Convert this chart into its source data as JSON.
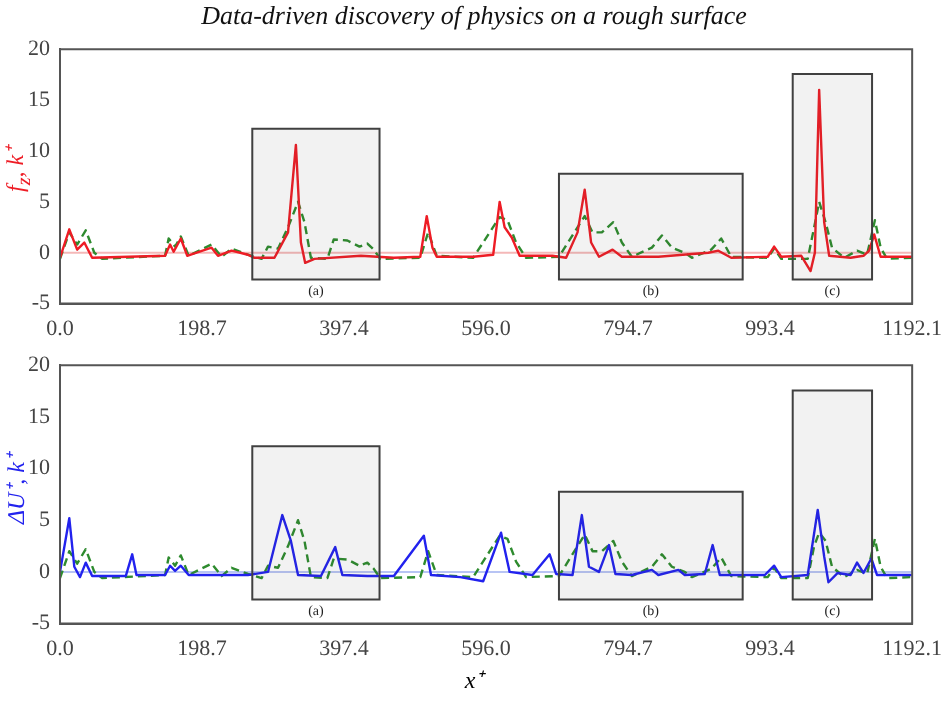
{
  "chart_data": [
    {
      "type": "line",
      "title": "Data-driven discovery of physics on a rough surface",
      "ylabel": "f$_{z}$, k⁺",
      "xlim": [
        0,
        1192.1
      ],
      "xticks": [
        {
          "value": 0,
          "label": "0.0"
        },
        {
          "value": 198.7,
          "label": "198.7"
        },
        {
          "value": 397.4,
          "label": "397.4"
        },
        {
          "value": 596.0,
          "label": "596.0"
        },
        {
          "value": 794.7,
          "label": "794.7"
        },
        {
          "value": 993.4,
          "label": "993.4"
        },
        {
          "value": 1192.1,
          "label": "1192.1"
        }
      ],
      "ylim": [
        -5,
        20
      ],
      "yticks": [
        -5,
        0,
        5,
        10,
        15,
        20
      ],
      "grid": false,
      "legend": false,
      "ref_lines": [
        {
          "axis": "y",
          "value": 0,
          "color": "#f4b8b8"
        }
      ],
      "bands": [
        {
          "axis": "x",
          "from": 269,
          "to": 447,
          "label": "(a)",
          "color": "#404040"
        },
        {
          "axis": "x",
          "from": 698,
          "to": 955,
          "label": "(b)",
          "color": "#404040"
        },
        {
          "axis": "x",
          "from": 1025,
          "to": 1136,
          "label": "(c)",
          "color": "#404040"
        }
      ],
      "series": [
        {
          "color": "#ee1c25",
          "line_style": "solid",
          "x": [
            0,
            13,
            24,
            34,
            45,
            96,
            147,
            154,
            159,
            169,
            178,
            212,
            221,
            240,
            263,
            272,
            300,
            319,
            330,
            337,
            343,
            356,
            421,
            444,
            467,
            504,
            513,
            521,
            527,
            578,
            606,
            615,
            622,
            632,
            643,
            689,
            708,
            724,
            734,
            743,
            754,
            773,
            786,
            837,
            907,
            921,
            939,
            990,
            999,
            1009,
            1037,
            1050,
            1056,
            1062,
            1069,
            1076,
            1106,
            1124,
            1132,
            1139,
            1148,
            1192
          ],
          "values": [
            -0.5,
            2.3,
            0.3,
            1.0,
            -0.5,
            -0.4,
            -0.3,
            0.8,
            0.1,
            1.4,
            -0.3,
            0.5,
            -0.3,
            0.2,
            -0.2,
            -0.5,
            -0.5,
            2.0,
            10.6,
            1.0,
            -1.0,
            -0.6,
            -0.3,
            -0.4,
            -0.5,
            -0.4,
            3.6,
            0.5,
            -0.4,
            -0.4,
            -0.2,
            5.0,
            2.5,
            1.5,
            -0.3,
            -0.3,
            -0.5,
            2.0,
            6.2,
            1.0,
            -0.4,
            0.3,
            -0.4,
            -0.4,
            0.0,
            0.2,
            -0.5,
            -0.4,
            0.6,
            -0.4,
            -0.3,
            -1.8,
            0,
            16.0,
            3,
            -0.3,
            -0.5,
            -0.3,
            0.2,
            1.8,
            -0.4,
            -0.4
          ]
        },
        {
          "color": "#2e8b2e",
          "line_style": "dashed",
          "x": [
            0,
            13,
            24,
            36,
            48,
            59,
            147,
            152,
            161,
            169,
            180,
            212,
            226,
            240,
            263,
            282,
            291,
            305,
            319,
            333,
            342,
            351,
            374,
            383,
            402,
            419,
            430,
            439,
            448,
            504,
            515,
            527,
            578,
            615,
            626,
            638,
            652,
            698,
            734,
            745,
            758,
            774,
            786,
            800,
            828,
            842,
            856,
            874,
            884,
            911,
            925,
            939,
            990,
            999,
            1009,
            1046,
            1055,
            1062,
            1071,
            1080,
            1097,
            1115,
            1129,
            1140,
            1148,
            1157,
            1192
          ],
          "values": [
            -0.6,
            2.0,
            0.8,
            2.2,
            0,
            -0.6,
            -0.3,
            1.4,
            0.6,
            1.6,
            -0.3,
            0.8,
            -0.4,
            0.4,
            -0.2,
            -0.6,
            0.6,
            0.4,
            2.5,
            5.0,
            3.0,
            -0.5,
            -0.6,
            1.3,
            1.2,
            0.6,
            0.9,
            0.3,
            -0.6,
            -0.5,
            2.0,
            -0.3,
            -0.5,
            3.5,
            3.2,
            1.0,
            -0.5,
            -0.4,
            3.6,
            2.0,
            2.0,
            3.0,
            1.0,
            -0.4,
            0.5,
            1.7,
            0.5,
            0,
            -0.5,
            0.3,
            1.4,
            -0.4,
            -0.5,
            0.4,
            -0.6,
            -0.6,
            2.5,
            5.0,
            3.0,
            0.5,
            -0.5,
            0.2,
            -0.2,
            3.2,
            0.5,
            -0.6,
            -0.5
          ]
        }
      ]
    },
    {
      "type": "line",
      "ylabel": "ΔU⁺, k⁺",
      "xlabel": "x⁺",
      "xlim": [
        0,
        1192.1
      ],
      "xticks": [
        {
          "value": 0,
          "label": "0.0"
        },
        {
          "value": 198.7,
          "label": "198.7"
        },
        {
          "value": 397.4,
          "label": "397.4"
        },
        {
          "value": 596.0,
          "label": "596.0"
        },
        {
          "value": 794.7,
          "label": "794.7"
        },
        {
          "value": 993.4,
          "label": "993.4"
        },
        {
          "value": 1192.1,
          "label": "1192.1"
        }
      ],
      "ylim": [
        -5,
        20
      ],
      "yticks": [
        -5,
        0,
        5,
        10,
        15,
        20
      ],
      "grid": false,
      "legend": false,
      "ref_lines": [
        {
          "axis": "y",
          "value": 0,
          "color": "#b8c4f4"
        }
      ],
      "bands": [
        {
          "axis": "x",
          "from": 269,
          "to": 447,
          "label": "(a)",
          "color": "#404040"
        },
        {
          "axis": "x",
          "from": 698,
          "to": 955,
          "label": "(b)",
          "color": "#404040"
        },
        {
          "axis": "x",
          "from": 1025,
          "to": 1136,
          "label": "(c)",
          "color": "#404040"
        }
      ],
      "series": [
        {
          "color": "#2222ee",
          "line_style": "solid",
          "x": [
            0,
            13,
            20,
            28,
            36,
            45,
            92,
            101,
            107,
            147,
            154,
            161,
            169,
            180,
            263,
            291,
            311,
            323,
            333,
            365,
            385,
            395,
            430,
            467,
            509,
            519,
            560,
            592,
            617,
            629,
            661,
            685,
            694,
            717,
            730,
            740,
            754,
            768,
            777,
            800,
            828,
            837,
            865,
            874,
            902,
            913,
            923,
            986,
            999,
            1009,
            1046,
            1060,
            1069,
            1075,
            1088,
            1106,
            1115,
            1124,
            1135,
            1143,
            1192
          ],
          "values": [
            0,
            5.2,
            0.5,
            -0.5,
            0.9,
            -0.4,
            -0.4,
            1.7,
            -0.3,
            -0.3,
            0.6,
            0.1,
            0.6,
            -0.3,
            -0.3,
            0.0,
            5.5,
            3.0,
            -0.3,
            -0.4,
            2.4,
            -0.3,
            -0.4,
            -0.4,
            3.5,
            -0.3,
            -0.5,
            -0.9,
            3.8,
            0.0,
            -0.3,
            1.7,
            -0.2,
            -0.3,
            5.5,
            0.5,
            0.0,
            2.6,
            -0.2,
            -0.3,
            0.2,
            -0.3,
            0.2,
            -0.3,
            -0.2,
            2.6,
            -0.3,
            -0.3,
            0.6,
            -0.5,
            -0.3,
            6.0,
            1.5,
            -1.0,
            -0.1,
            -0.3,
            0.9,
            -0.1,
            1.3,
            -0.3,
            -0.3
          ]
        },
        {
          "color": "#2e8b2e",
          "line_style": "dashed",
          "x": [
            0,
            13,
            24,
            36,
            48,
            59,
            147,
            152,
            161,
            169,
            180,
            212,
            226,
            240,
            263,
            282,
            291,
            305,
            319,
            333,
            342,
            351,
            374,
            383,
            402,
            419,
            430,
            439,
            448,
            504,
            515,
            527,
            578,
            615,
            626,
            638,
            652,
            698,
            734,
            745,
            758,
            774,
            786,
            800,
            828,
            842,
            856,
            874,
            884,
            911,
            925,
            939,
            990,
            999,
            1009,
            1046,
            1055,
            1062,
            1071,
            1080,
            1097,
            1115,
            1129,
            1140,
            1148,
            1157,
            1192
          ],
          "values": [
            -0.6,
            2.0,
            0.8,
            2.2,
            0,
            -0.6,
            -0.3,
            1.4,
            0.6,
            1.6,
            -0.3,
            0.8,
            -0.4,
            0.4,
            -0.2,
            -0.6,
            0.6,
            0.4,
            2.5,
            5.0,
            3.0,
            -0.5,
            -0.6,
            1.3,
            1.2,
            0.6,
            0.9,
            0.3,
            -0.6,
            -0.5,
            2.0,
            -0.3,
            -0.5,
            3.5,
            3.2,
            1.0,
            -0.5,
            -0.4,
            3.6,
            2.0,
            2.0,
            3.0,
            1.0,
            -0.4,
            0.5,
            1.7,
            0.5,
            0,
            -0.5,
            0.3,
            1.4,
            -0.4,
            -0.5,
            0.4,
            -0.6,
            -0.6,
            2.5,
            3.8,
            3.0,
            0.5,
            -0.5,
            0.2,
            -0.2,
            3.2,
            0.5,
            -0.6,
            -0.5
          ]
        }
      ]
    }
  ]
}
